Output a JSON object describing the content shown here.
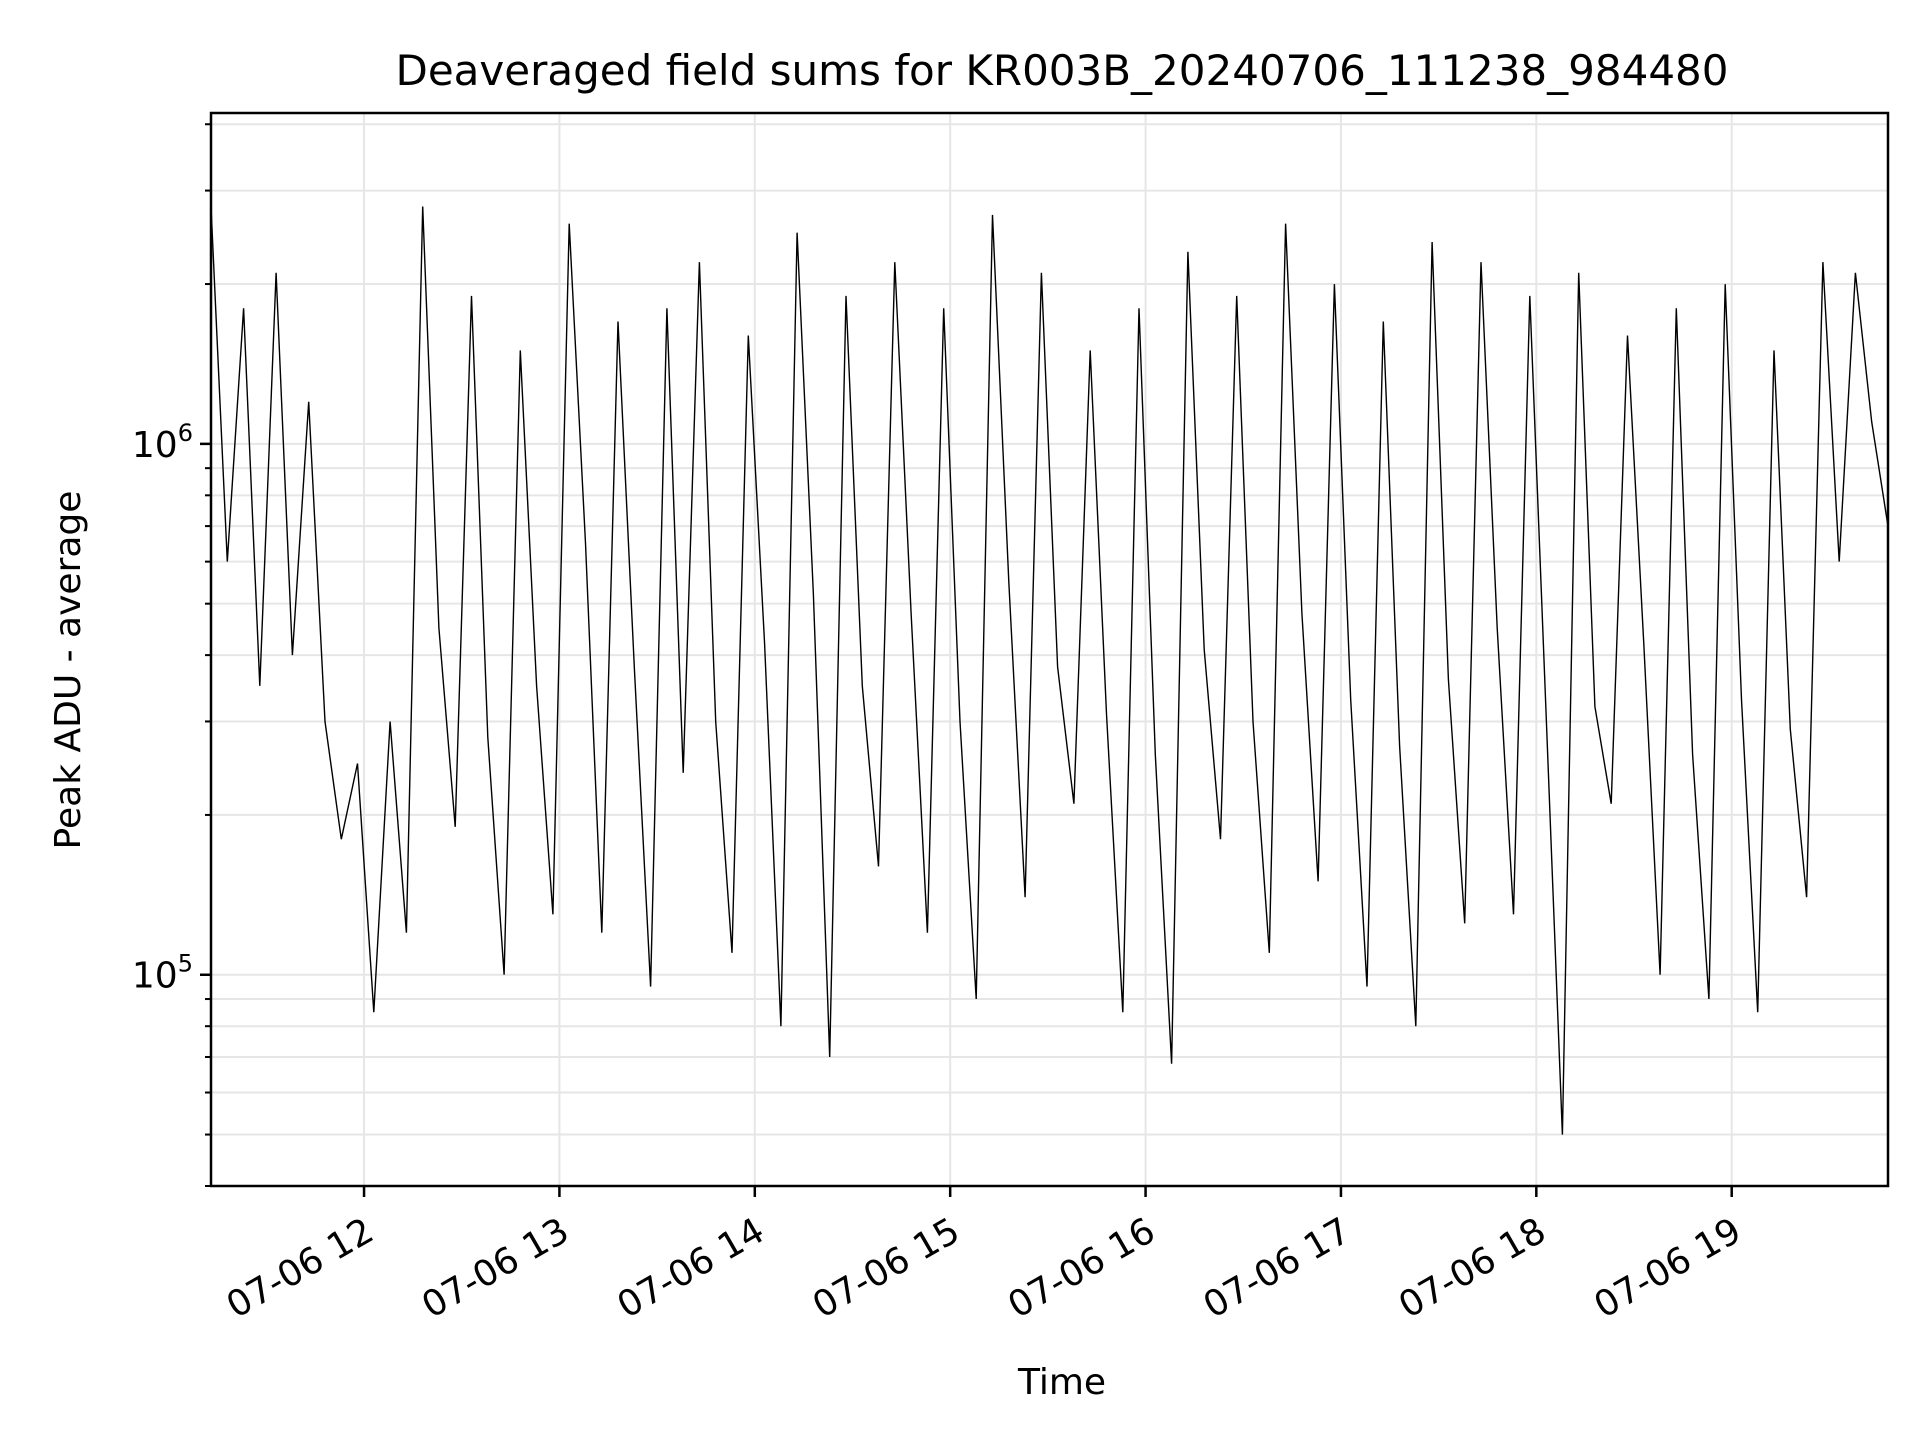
{
  "chart_data": {
    "type": "line",
    "title": "Deaveraged field sums for KR003B_20240706_111238_984480",
    "xlabel": "Time",
    "ylabel": "Peak ADU - average",
    "xscale": "time",
    "yscale": "log",
    "xlim": [
      "2024-07-06T11:13",
      "2024-07-06T19:48"
    ],
    "ylim": [
      40000,
      4200000
    ],
    "grid": true,
    "line_color": "#000000",
    "grid_color": "#e6e6e6",
    "x_ticks": [
      {
        "value": "2024-07-06T12:00",
        "label": "07-06 12"
      },
      {
        "value": "2024-07-06T13:00",
        "label": "07-06 13"
      },
      {
        "value": "2024-07-06T14:00",
        "label": "07-06 14"
      },
      {
        "value": "2024-07-06T15:00",
        "label": "07-06 15"
      },
      {
        "value": "2024-07-06T16:00",
        "label": "07-06 16"
      },
      {
        "value": "2024-07-06T17:00",
        "label": "07-06 17"
      },
      {
        "value": "2024-07-06T18:00",
        "label": "07-06 18"
      },
      {
        "value": "2024-07-06T19:00",
        "label": "07-06 19"
      }
    ],
    "y_major_ticks": [
      {
        "value": 100000,
        "base": "10",
        "exp": "5"
      },
      {
        "value": 1000000,
        "base": "10",
        "exp": "6"
      }
    ],
    "y_minor_ticks": [
      40000,
      50000,
      60000,
      70000,
      80000,
      90000,
      200000,
      300000,
      400000,
      500000,
      600000,
      700000,
      800000,
      900000,
      2000000,
      3000000,
      4000000
    ],
    "series": [
      {
        "x": [
          "2024-07-06T11:13",
          "2024-07-06T11:18",
          "2024-07-06T11:23",
          "2024-07-06T11:28",
          "2024-07-06T11:33",
          "2024-07-06T11:38",
          "2024-07-06T11:43",
          "2024-07-06T11:48",
          "2024-07-06T11:53",
          "2024-07-06T11:58",
          "2024-07-06T12:03",
          "2024-07-06T12:08",
          "2024-07-06T12:13",
          "2024-07-06T12:18",
          "2024-07-06T12:23",
          "2024-07-06T12:28",
          "2024-07-06T12:33",
          "2024-07-06T12:38",
          "2024-07-06T12:43",
          "2024-07-06T12:48",
          "2024-07-06T12:53",
          "2024-07-06T12:58",
          "2024-07-06T13:03",
          "2024-07-06T13:08",
          "2024-07-06T13:13",
          "2024-07-06T13:18",
          "2024-07-06T13:23",
          "2024-07-06T13:28",
          "2024-07-06T13:33",
          "2024-07-06T13:38",
          "2024-07-06T13:43",
          "2024-07-06T13:48",
          "2024-07-06T13:53",
          "2024-07-06T13:58",
          "2024-07-06T14:03",
          "2024-07-06T14:08",
          "2024-07-06T14:13",
          "2024-07-06T14:18",
          "2024-07-06T14:23",
          "2024-07-06T14:28",
          "2024-07-06T14:33",
          "2024-07-06T14:38",
          "2024-07-06T14:43",
          "2024-07-06T14:48",
          "2024-07-06T14:53",
          "2024-07-06T14:58",
          "2024-07-06T15:03",
          "2024-07-06T15:08",
          "2024-07-06T15:13",
          "2024-07-06T15:18",
          "2024-07-06T15:23",
          "2024-07-06T15:28",
          "2024-07-06T15:33",
          "2024-07-06T15:38",
          "2024-07-06T15:43",
          "2024-07-06T15:48",
          "2024-07-06T15:53",
          "2024-07-06T15:58",
          "2024-07-06T16:03",
          "2024-07-06T16:08",
          "2024-07-06T16:13",
          "2024-07-06T16:18",
          "2024-07-06T16:23",
          "2024-07-06T16:28",
          "2024-07-06T16:33",
          "2024-07-06T16:38",
          "2024-07-06T16:43",
          "2024-07-06T16:48",
          "2024-07-06T16:53",
          "2024-07-06T16:58",
          "2024-07-06T17:03",
          "2024-07-06T17:08",
          "2024-07-06T17:13",
          "2024-07-06T17:18",
          "2024-07-06T17:23",
          "2024-07-06T17:28",
          "2024-07-06T17:33",
          "2024-07-06T17:38",
          "2024-07-06T17:43",
          "2024-07-06T17:48",
          "2024-07-06T17:53",
          "2024-07-06T17:58",
          "2024-07-06T18:03",
          "2024-07-06T18:08",
          "2024-07-06T18:13",
          "2024-07-06T18:18",
          "2024-07-06T18:23",
          "2024-07-06T18:28",
          "2024-07-06T18:33",
          "2024-07-06T18:38",
          "2024-07-06T18:43",
          "2024-07-06T18:48",
          "2024-07-06T18:53",
          "2024-07-06T18:58",
          "2024-07-06T19:03",
          "2024-07-06T19:08",
          "2024-07-06T19:13",
          "2024-07-06T19:18",
          "2024-07-06T19:23",
          "2024-07-06T19:28",
          "2024-07-06T19:33",
          "2024-07-06T19:38",
          "2024-07-06T19:43",
          "2024-07-06T19:48"
        ],
        "y": [
          2800000,
          600000,
          1800000,
          350000,
          2100000,
          400000,
          1200000,
          300000,
          180000,
          250000,
          85000,
          300000,
          120000,
          2800000,
          450000,
          190000,
          1900000,
          280000,
          100000,
          1500000,
          350000,
          130000,
          2600000,
          650000,
          120000,
          1700000,
          380000,
          95000,
          1800000,
          240000,
          2200000,
          300000,
          110000,
          1600000,
          420000,
          80000,
          2500000,
          520000,
          70000,
          1900000,
          350000,
          160000,
          2200000,
          480000,
          120000,
          1800000,
          300000,
          90000,
          2700000,
          550000,
          140000,
          2100000,
          380000,
          210000,
          1500000,
          310000,
          85000,
          1800000,
          260000,
          68000,
          2300000,
          410000,
          180000,
          1900000,
          300000,
          110000,
          2600000,
          480000,
          150000,
          2000000,
          330000,
          95000,
          1700000,
          270000,
          80000,
          2400000,
          360000,
          125000,
          2200000,
          450000,
          130000,
          1900000,
          310000,
          50000,
          2100000,
          320000,
          210000,
          1600000,
          420000,
          100000,
          1800000,
          260000,
          90000,
          2000000,
          330000,
          85000,
          1500000,
          290000,
          140000,
          2200000,
          600000,
          2100000,
          1100000,
          700000
        ]
      }
    ]
  }
}
